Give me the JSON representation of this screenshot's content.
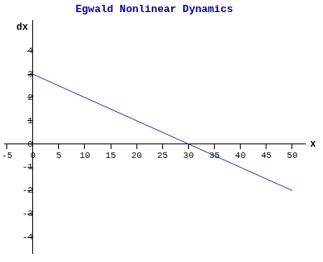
{
  "chart_data": {
    "type": "line",
    "title": "Egwald Nonlinear Dynamics",
    "x_label": "x",
    "y_label": "dx",
    "x": [
      0,
      50
    ],
    "values": [
      3,
      -2
    ],
    "color": "#2828c0",
    "title_color": "#000099",
    "xlim": [
      -5.5,
      52.5
    ],
    "xticks": [
      -5,
      0,
      5,
      10,
      15,
      20,
      25,
      30,
      35,
      40,
      45,
      50
    ],
    "ylim": [
      -4.7,
      5.3
    ],
    "yticks": [
      -4,
      -3,
      -2,
      -1,
      0,
      1,
      2,
      3,
      4
    ],
    "grid": false
  }
}
